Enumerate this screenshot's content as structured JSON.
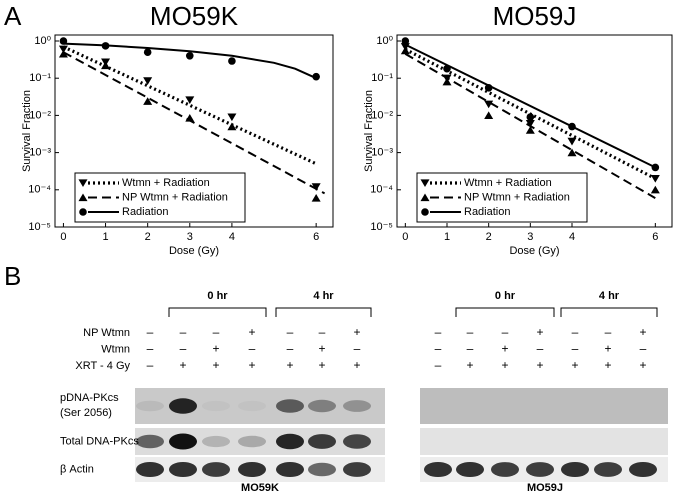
{
  "panel_labels": [
    "A",
    "B"
  ],
  "chart_data": [
    {
      "type": "scatter",
      "title": "MO59K",
      "x_label": "Dose (Gy)",
      "y_label": "Survival Fraction",
      "log_y": true,
      "legend": "lower left",
      "color": "#000000",
      "xlim": [
        -0.2,
        6.4
      ],
      "xticks": [
        0,
        1,
        2,
        3,
        4,
        6
      ],
      "ylim": [
        1e-05,
        1.45
      ],
      "yticks": [
        {
          "value": 1,
          "label": "10⁰"
        },
        {
          "value": 0.1,
          "label": "10⁻¹"
        },
        {
          "value": 0.01,
          "label": "10⁻²"
        },
        {
          "value": 0.001,
          "label": "10⁻³"
        },
        {
          "value": 0.0001,
          "label": "10⁻⁴"
        },
        {
          "value": 1e-05,
          "label": "10⁻⁵"
        }
      ],
      "series": [
        {
          "name": "Wtmn + Radiation",
          "marker": "tri-down",
          "dash": "dotted",
          "x": [
            0,
            1,
            2,
            3,
            4,
            6
          ],
          "values": [
            0.6,
            0.27,
            0.085,
            0.026,
            0.009,
            0.00012
          ],
          "fit_x": [
            0,
            6
          ],
          "fit_values": [
            0.7,
            0.0005
          ]
        },
        {
          "name": "NP Wtmn + Radiation",
          "marker": "tri-up",
          "dash": "dashed",
          "x": [
            0,
            1,
            2,
            3,
            4,
            6
          ],
          "values": [
            0.45,
            0.22,
            0.024,
            0.0085,
            0.005,
            6e-05
          ],
          "fit_x": [
            0,
            6.2
          ],
          "fit_values": [
            0.5,
            8e-05
          ]
        },
        {
          "name": "Radiation",
          "marker": "circle",
          "dash": "solid",
          "x": [
            0,
            1,
            2,
            3,
            4,
            6
          ],
          "values": [
            1,
            0.74,
            0.5,
            0.4,
            0.29,
            0.11
          ],
          "fit_x": [
            0,
            1,
            2,
            3,
            4,
            5,
            5.5,
            6
          ],
          "fit_values": [
            0.85,
            0.76,
            0.65,
            0.53,
            0.4,
            0.26,
            0.18,
            0.1
          ]
        }
      ]
    },
    {
      "type": "scatter",
      "title": "MO59J",
      "x_label": "Dose (Gy)",
      "y_label": "Survival Fraction",
      "log_y": true,
      "legend": "lower left",
      "color": "#000000",
      "xlim": [
        -0.2,
        6.4
      ],
      "xticks": [
        0,
        1,
        2,
        3,
        4,
        6
      ],
      "ylim": [
        1e-05,
        1.45
      ],
      "yticks": [
        {
          "value": 1,
          "label": "10⁰"
        },
        {
          "value": 0.1,
          "label": "10⁻¹"
        },
        {
          "value": 0.01,
          "label": "10⁻²"
        },
        {
          "value": 0.001,
          "label": "10⁻³"
        },
        {
          "value": 0.0001,
          "label": "10⁻⁴"
        },
        {
          "value": 1e-05,
          "label": "10⁻⁵"
        }
      ],
      "series": [
        {
          "name": "Wtmn + Radiation",
          "marker": "tri-down",
          "dash": "dotted",
          "x": [
            0,
            1,
            2,
            3,
            4,
            6
          ],
          "values": [
            0.7,
            0.1,
            0.02,
            0.006,
            0.002,
            0.0002
          ],
          "fit_x": [
            0,
            6
          ],
          "fit_values": [
            0.6,
            0.0002
          ]
        },
        {
          "name": "NP Wtmn + Radiation",
          "marker": "tri-up",
          "dash": "dashed",
          "x": [
            0,
            1,
            2,
            3,
            4,
            6
          ],
          "values": [
            0.55,
            0.08,
            0.01,
            0.004,
            0.001,
            0.0001
          ],
          "fit_x": [
            0,
            6
          ],
          "fit_values": [
            0.45,
            6e-05
          ]
        },
        {
          "name": "Radiation",
          "marker": "circle",
          "dash": "solid",
          "x": [
            0,
            1,
            2,
            3,
            4,
            6
          ],
          "values": [
            1,
            0.18,
            0.055,
            0.009,
            0.005,
            0.0004
          ],
          "fit_x": [
            0,
            6
          ],
          "fit_values": [
            0.8,
            0.0004
          ]
        }
      ]
    }
  ],
  "blot": {
    "time_labels": [
      "0 hr",
      "4 hr"
    ],
    "conditions": [
      {
        "label": "NP Wtmn",
        "left": [
          "–",
          "–",
          "–",
          "+",
          "–",
          "–",
          "+"
        ],
        "right": [
          "–",
          "–",
          "–",
          "+",
          "–",
          "–",
          "+"
        ]
      },
      {
        "label": "Wtmn",
        "left": [
          "–",
          "–",
          "+",
          "–",
          "–",
          "+",
          "–"
        ],
        "right": [
          "–",
          "–",
          "+",
          "–",
          "–",
          "+",
          "–"
        ]
      },
      {
        "label": "XRT - 4 Gy",
        "left": [
          "–",
          "+",
          "+",
          "+",
          "+",
          "+",
          "+"
        ],
        "right": [
          "–",
          "+",
          "+",
          "+",
          "+",
          "+",
          "+"
        ]
      }
    ],
    "rows": [
      [
        "pDNA-PKcs",
        "(Ser 2056)"
      ],
      [
        "Total DNA-PKcs"
      ],
      [
        "β Actin"
      ]
    ],
    "cell_lines": [
      "MO59K",
      "MO59J"
    ]
  }
}
